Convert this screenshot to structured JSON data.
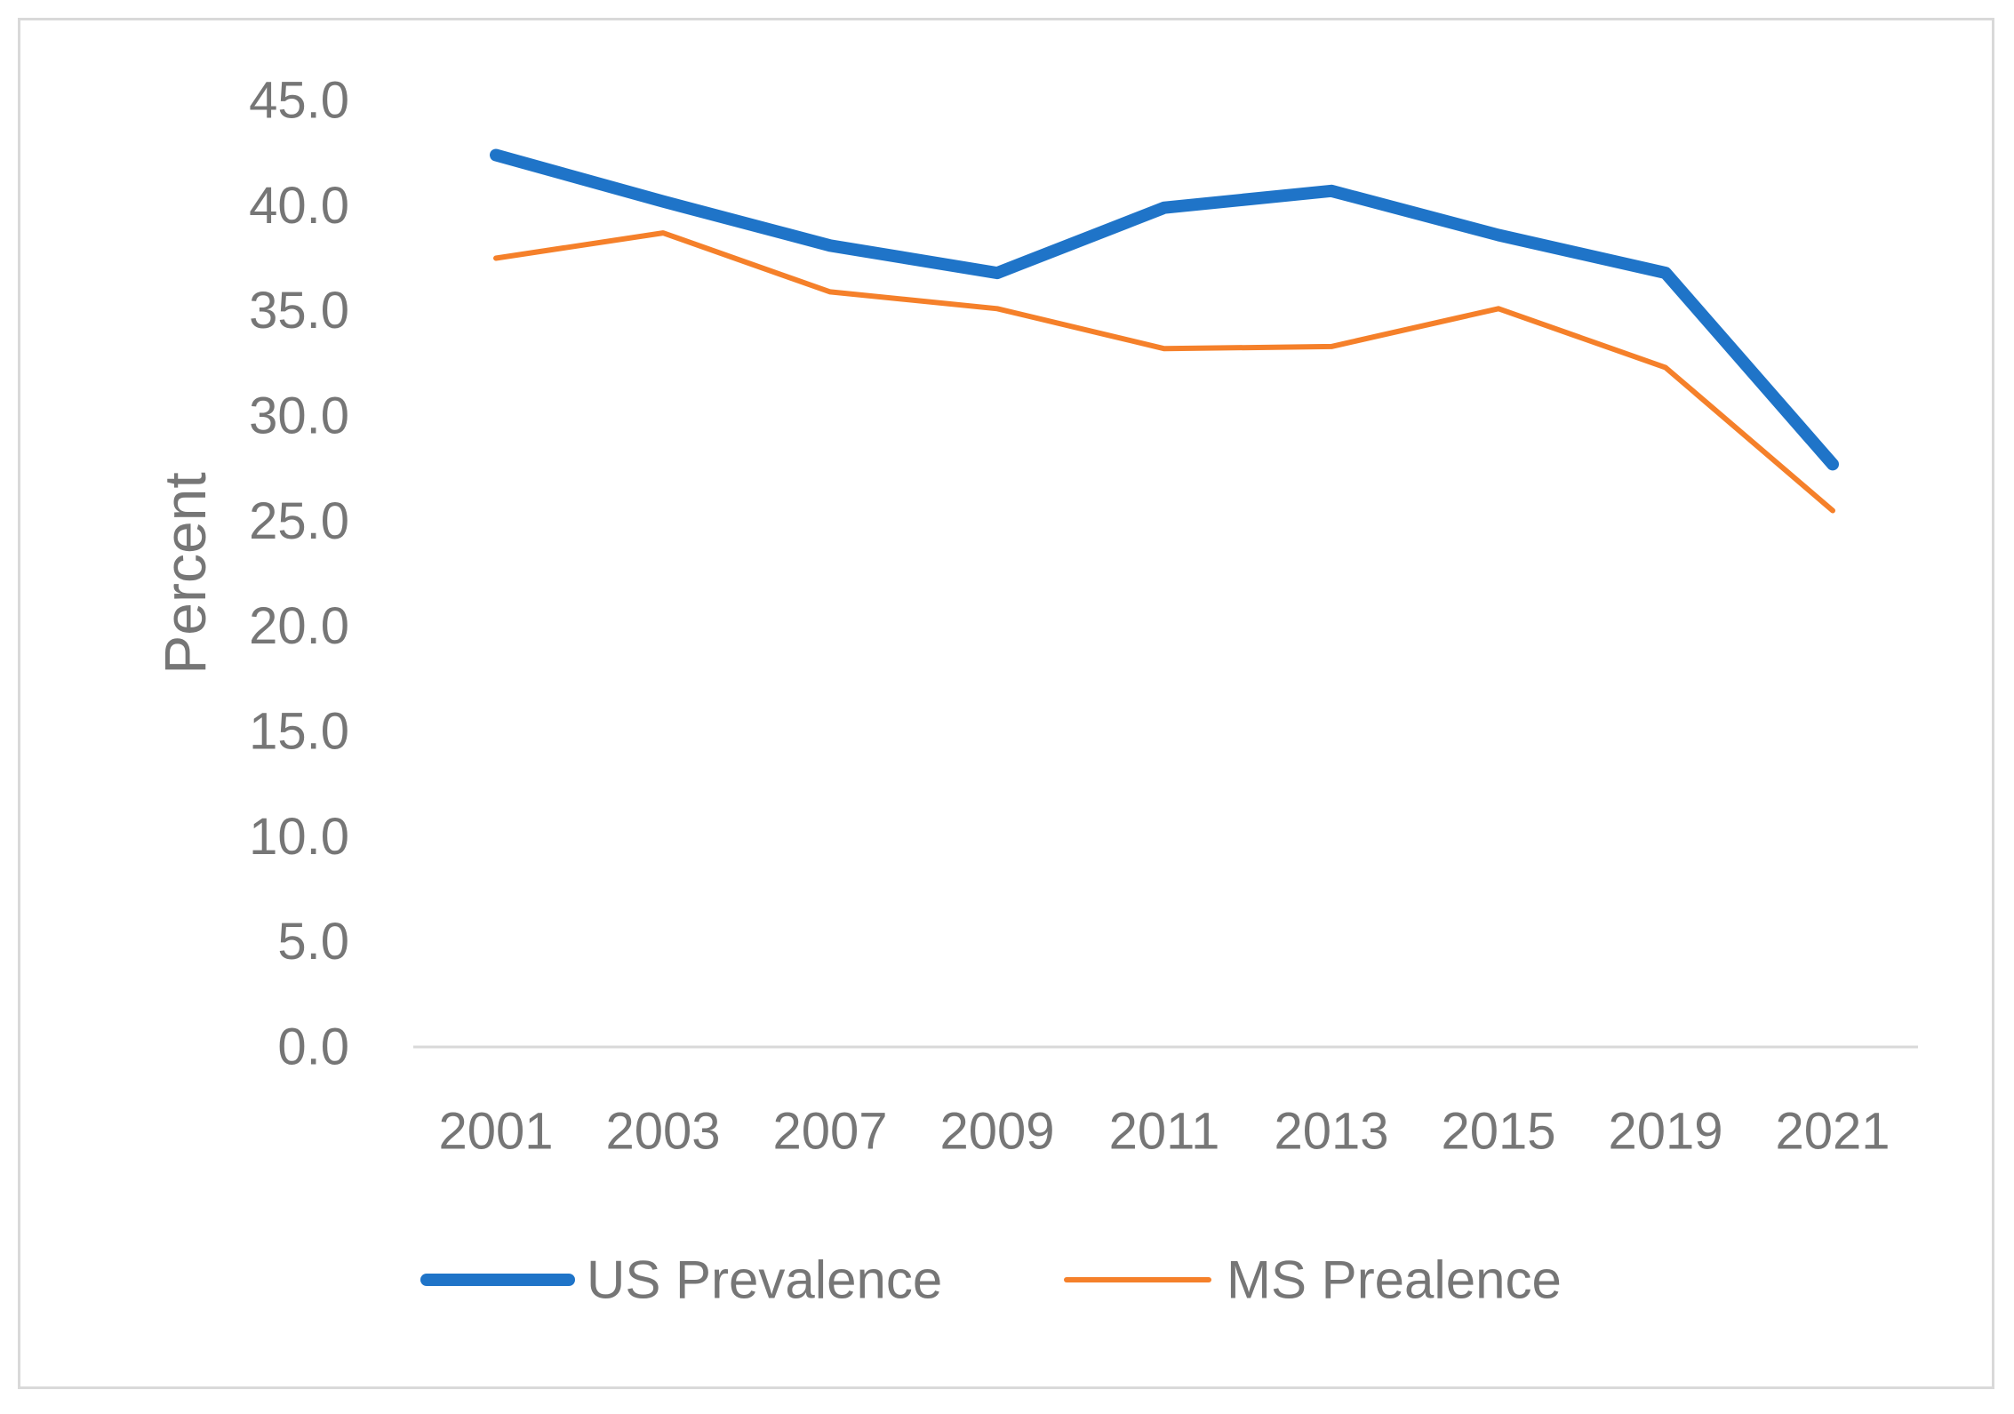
{
  "chart_data": {
    "type": "line",
    "title": "",
    "xlabel": "",
    "ylabel": "Percent",
    "ylim": [
      0,
      45
    ],
    "yticks": [
      "0.0",
      "5.0",
      "10.0",
      "15.0",
      "20.0",
      "25.0",
      "30.0",
      "35.0",
      "40.0",
      "45.0"
    ],
    "categories": [
      "2001",
      "2003",
      "2007",
      "2009",
      "2011",
      "2013",
      "2015",
      "2019",
      "2021"
    ],
    "series": [
      {
        "name": "US Prevalence",
        "color": "#1f74c8",
        "values": [
          42.4,
          40.2,
          38.1,
          36.8,
          39.9,
          40.7,
          38.6,
          36.8,
          27.7
        ]
      },
      {
        "name": "MS Prealence",
        "color": "#f5802a",
        "values": [
          37.5,
          38.7,
          35.9,
          35.1,
          33.2,
          33.3,
          35.1,
          32.3,
          25.5
        ]
      }
    ],
    "legend": "bottom",
    "grid": false
  }
}
